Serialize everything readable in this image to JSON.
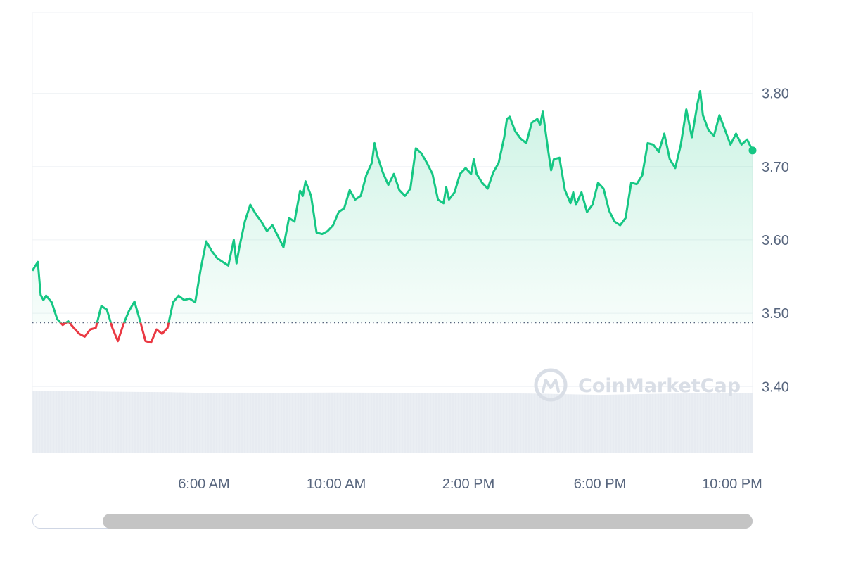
{
  "watermark": {
    "brand": "CoinMarketCap",
    "icon": "coinmarketcap-logo-icon"
  },
  "colors": {
    "up": "#16c784",
    "down": "#ea3943",
    "grid": "#eff2f5",
    "reference_line": "#58667e",
    "volume": "#e7ebf1",
    "axis_text": "#58667e"
  },
  "chart_data": {
    "type": "line",
    "title": "",
    "xlabel": "",
    "ylabel": "",
    "x_ticks": [
      "6:00 AM",
      "10:00 AM",
      "2:00 PM",
      "6:00 PM",
      "10:00 PM"
    ],
    "y_ticks": [
      "3.40",
      "3.50",
      "3.60",
      "3.70",
      "3.80"
    ],
    "ylim": [
      3.31,
      3.91
    ],
    "reference_value": 3.487,
    "time_range": [
      "00:50",
      "22:35"
    ],
    "grid": true,
    "series": [
      {
        "style": "price",
        "points": [
          [
            "00:50",
            3.558
          ],
          [
            "01:00",
            3.57
          ],
          [
            "01:05",
            3.525
          ],
          [
            "01:10",
            3.518
          ],
          [
            "01:15",
            3.524
          ],
          [
            "01:25",
            3.515
          ],
          [
            "01:35",
            3.492
          ],
          [
            "01:45",
            3.484
          ],
          [
            "01:55",
            3.489
          ],
          [
            "02:05",
            3.48
          ],
          [
            "02:15",
            3.472
          ],
          [
            "02:25",
            3.468
          ],
          [
            "02:35",
            3.478
          ],
          [
            "02:45",
            3.48
          ],
          [
            "02:55",
            3.51
          ],
          [
            "03:05",
            3.505
          ],
          [
            "03:15",
            3.48
          ],
          [
            "03:25",
            3.462
          ],
          [
            "03:35",
            3.485
          ],
          [
            "03:45",
            3.503
          ],
          [
            "03:55",
            3.516
          ],
          [
            "04:05",
            3.49
          ],
          [
            "04:15",
            3.462
          ],
          [
            "04:25",
            3.46
          ],
          [
            "04:35",
            3.478
          ],
          [
            "04:45",
            3.472
          ],
          [
            "04:55",
            3.48
          ],
          [
            "05:05",
            3.515
          ],
          [
            "05:15",
            3.524
          ],
          [
            "05:25",
            3.518
          ],
          [
            "05:35",
            3.52
          ],
          [
            "05:45",
            3.515
          ],
          [
            "05:55",
            3.56
          ],
          [
            "06:05",
            3.598
          ],
          [
            "06:15",
            3.585
          ],
          [
            "06:25",
            3.575
          ],
          [
            "06:35",
            3.57
          ],
          [
            "06:45",
            3.565
          ],
          [
            "06:55",
            3.6
          ],
          [
            "07:00",
            3.568
          ],
          [
            "07:05",
            3.59
          ],
          [
            "07:15",
            3.625
          ],
          [
            "07:25",
            3.648
          ],
          [
            "07:35",
            3.635
          ],
          [
            "07:45",
            3.625
          ],
          [
            "07:55",
            3.612
          ],
          [
            "08:05",
            3.62
          ],
          [
            "08:15",
            3.605
          ],
          [
            "08:25",
            3.59
          ],
          [
            "08:35",
            3.63
          ],
          [
            "08:45",
            3.625
          ],
          [
            "08:55",
            3.667
          ],
          [
            "09:00",
            3.66
          ],
          [
            "09:05",
            3.68
          ],
          [
            "09:15",
            3.66
          ],
          [
            "09:25",
            3.61
          ],
          [
            "09:35",
            3.608
          ],
          [
            "09:45",
            3.612
          ],
          [
            "09:55",
            3.62
          ],
          [
            "10:05",
            3.638
          ],
          [
            "10:15",
            3.643
          ],
          [
            "10:25",
            3.668
          ],
          [
            "10:35",
            3.655
          ],
          [
            "10:45",
            3.66
          ],
          [
            "10:55",
            3.688
          ],
          [
            "11:05",
            3.705
          ],
          [
            "11:10",
            3.732
          ],
          [
            "11:15",
            3.715
          ],
          [
            "11:25",
            3.692
          ],
          [
            "11:35",
            3.675
          ],
          [
            "11:45",
            3.69
          ],
          [
            "11:55",
            3.668
          ],
          [
            "12:05",
            3.66
          ],
          [
            "12:15",
            3.67
          ],
          [
            "12:25",
            3.725
          ],
          [
            "12:35",
            3.718
          ],
          [
            "12:45",
            3.705
          ],
          [
            "12:55",
            3.69
          ],
          [
            "13:05",
            3.655
          ],
          [
            "13:15",
            3.65
          ],
          [
            "13:20",
            3.672
          ],
          [
            "13:25",
            3.655
          ],
          [
            "13:35",
            3.665
          ],
          [
            "13:45",
            3.69
          ],
          [
            "13:55",
            3.698
          ],
          [
            "14:05",
            3.69
          ],
          [
            "14:10",
            3.71
          ],
          [
            "14:15",
            3.69
          ],
          [
            "14:25",
            3.678
          ],
          [
            "14:35",
            3.67
          ],
          [
            "14:45",
            3.692
          ],
          [
            "14:55",
            3.705
          ],
          [
            "15:05",
            3.74
          ],
          [
            "15:10",
            3.765
          ],
          [
            "15:15",
            3.768
          ],
          [
            "15:25",
            3.748
          ],
          [
            "15:35",
            3.738
          ],
          [
            "15:45",
            3.732
          ],
          [
            "15:55",
            3.76
          ],
          [
            "16:05",
            3.765
          ],
          [
            "16:10",
            3.757
          ],
          [
            "16:15",
            3.775
          ],
          [
            "16:25",
            3.72
          ],
          [
            "16:30",
            3.695
          ],
          [
            "16:35",
            3.71
          ],
          [
            "16:45",
            3.712
          ],
          [
            "16:55",
            3.668
          ],
          [
            "17:05",
            3.65
          ],
          [
            "17:10",
            3.665
          ],
          [
            "17:15",
            3.648
          ],
          [
            "17:25",
            3.665
          ],
          [
            "17:35",
            3.638
          ],
          [
            "17:45",
            3.648
          ],
          [
            "17:55",
            3.678
          ],
          [
            "18:05",
            3.67
          ],
          [
            "18:15",
            3.64
          ],
          [
            "18:25",
            3.625
          ],
          [
            "18:35",
            3.62
          ],
          [
            "18:45",
            3.63
          ],
          [
            "18:55",
            3.678
          ],
          [
            "19:05",
            3.676
          ],
          [
            "19:15",
            3.688
          ],
          [
            "19:25",
            3.732
          ],
          [
            "19:35",
            3.73
          ],
          [
            "19:45",
            3.72
          ],
          [
            "19:55",
            3.745
          ],
          [
            "20:05",
            3.71
          ],
          [
            "20:15",
            3.698
          ],
          [
            "20:25",
            3.73
          ],
          [
            "20:35",
            3.778
          ],
          [
            "20:45",
            3.74
          ],
          [
            "20:55",
            3.785
          ],
          [
            "21:00",
            3.803
          ],
          [
            "21:05",
            3.77
          ],
          [
            "21:15",
            3.75
          ],
          [
            "21:25",
            3.742
          ],
          [
            "21:35",
            3.77
          ],
          [
            "21:45",
            3.75
          ],
          [
            "21:55",
            3.73
          ],
          [
            "22:05",
            3.745
          ],
          [
            "22:15",
            3.73
          ],
          [
            "22:25",
            3.737
          ],
          [
            "22:35",
            3.722
          ]
        ]
      },
      {
        "style": "volume",
        "points": [
          [
            "00:50",
            0.945
          ],
          [
            "02:00",
            0.94
          ],
          [
            "03:00",
            0.93
          ],
          [
            "04:00",
            0.925
          ],
          [
            "05:00",
            0.92
          ],
          [
            "06:00",
            0.91
          ],
          [
            "08:00",
            0.912
          ],
          [
            "10:00",
            0.915
          ],
          [
            "12:00",
            0.912
          ],
          [
            "14:00",
            0.91
          ],
          [
            "16:00",
            0.9
          ],
          [
            "18:00",
            0.88
          ],
          [
            "20:00",
            0.9
          ],
          [
            "22:35",
            0.91
          ]
        ]
      }
    ]
  }
}
